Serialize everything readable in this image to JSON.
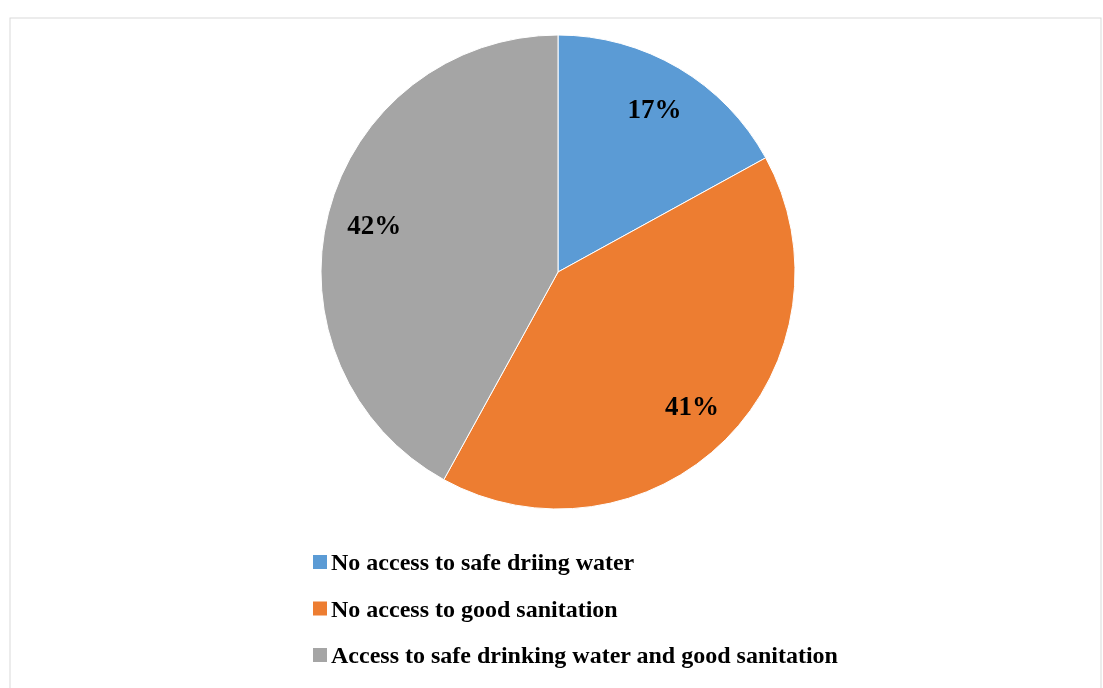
{
  "chart_data": {
    "type": "pie",
    "categories": [
      "No access to safe driing water",
      "No access to good sanitation",
      "Access to safe drinking water and good sanitation"
    ],
    "values": [
      17,
      41,
      42
    ],
    "colors": [
      "#5b9bd5",
      "#ed7d31",
      "#a5a5a5"
    ],
    "value_labels": [
      "17%",
      "41%",
      "42%"
    ],
    "legend": "bottom"
  }
}
